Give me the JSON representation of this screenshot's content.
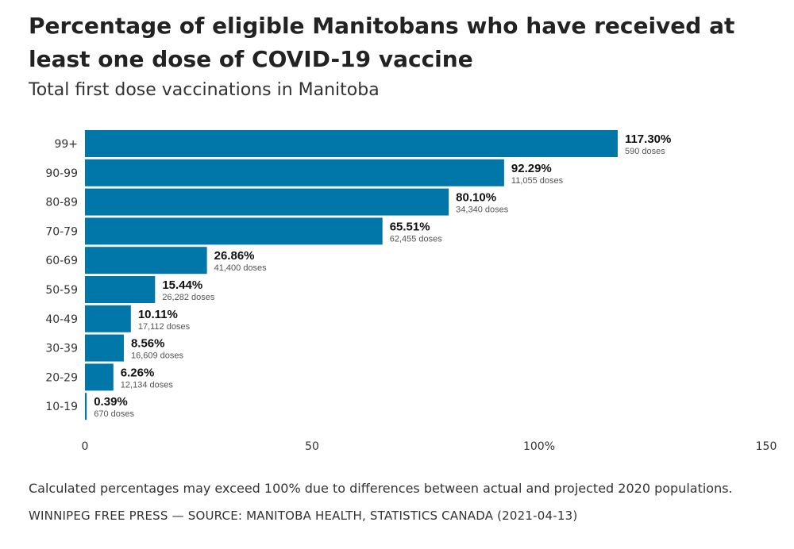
{
  "title": "Percentage of eligible Manitobans who have received at least one dose of COVID-19 vaccine",
  "subtitle": "Total first dose vaccinations in Manitoba",
  "note": "Calculated percentages may exceed 100% due to differences between actual and projected 2020 populations.",
  "source": "WINNIPEG FREE PRESS — SOURCE: MANITOBA HEALTH, STATISTICS CANADA (2021-04-13)",
  "colors": {
    "bar": "#0077a8"
  },
  "chart_data": {
    "type": "bar",
    "orientation": "horizontal",
    "categories": [
      "99+",
      "90-99",
      "80-89",
      "70-79",
      "60-69",
      "50-59",
      "40-49",
      "30-39",
      "20-29",
      "10-19"
    ],
    "values": [
      117.3,
      92.29,
      80.1,
      65.51,
      26.86,
      15.44,
      10.11,
      8.56,
      6.26,
      0.39
    ],
    "value_labels": [
      "117.30%",
      "92.29%",
      "80.10%",
      "65.51%",
      "26.86%",
      "15.44%",
      "10.11%",
      "8.56%",
      "6.26%",
      "0.39%"
    ],
    "dose_labels": [
      "590 doses",
      "11,055 doses",
      "34,340 doses",
      "62,455 doses",
      "41,400 doses",
      "26,282 doses",
      "17,112 doses",
      "16,609 doses",
      "12,134 doses",
      "670 doses"
    ],
    "xlim": [
      0,
      150
    ],
    "ticks": [
      0,
      50,
      100,
      150
    ],
    "tick_labels": [
      "0",
      "50",
      "100%",
      "150"
    ],
    "grid": false
  }
}
